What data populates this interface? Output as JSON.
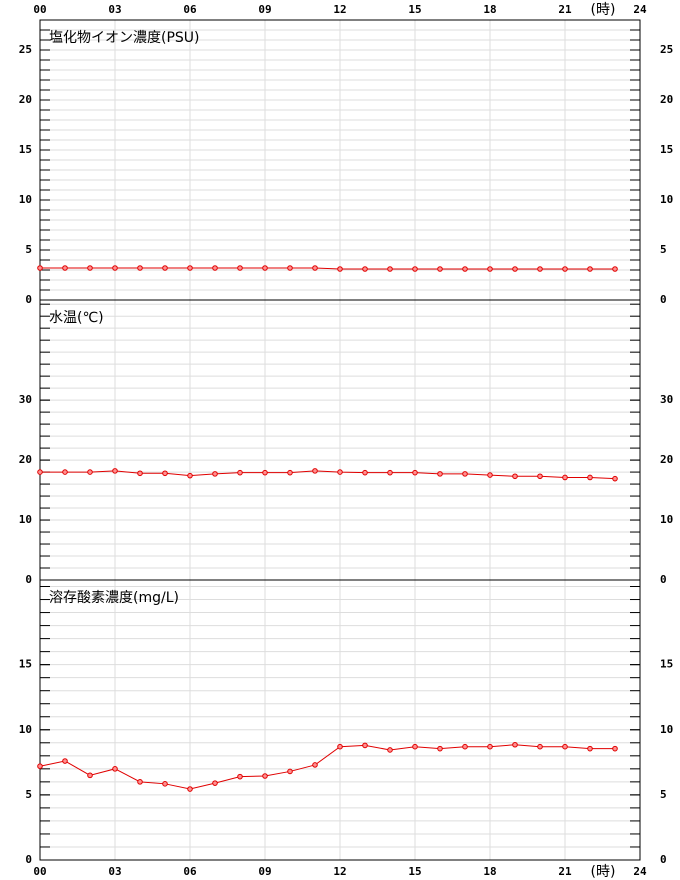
{
  "chart_data": [
    {
      "type": "line",
      "title": "塩化物イオン濃度(PSU)",
      "x_label": "(時)",
      "xtick_side": "top",
      "x": [
        0,
        1,
        2,
        3,
        4,
        5,
        6,
        7,
        8,
        9,
        10,
        11,
        12,
        13,
        14,
        15,
        16,
        17,
        18,
        19,
        20,
        21,
        22,
        23
      ],
      "series": [
        {
          "color": "#e00000",
          "values": [
            3.2,
            3.2,
            3.2,
            3.2,
            3.2,
            3.2,
            3.2,
            3.2,
            3.2,
            3.2,
            3.2,
            3.2,
            3.1,
            3.1,
            3.1,
            3.1,
            3.1,
            3.1,
            3.1,
            3.1,
            3.1,
            3.1,
            3.1,
            3.1
          ]
        }
      ],
      "xlim": [
        0,
        24
      ],
      "xticks": [
        {
          "value": 0,
          "label": "00"
        },
        {
          "value": 3,
          "label": "03"
        },
        {
          "value": 6,
          "label": "06"
        },
        {
          "value": 9,
          "label": "09"
        },
        12,
        15,
        18,
        21,
        24
      ],
      "ylim": [
        0,
        28
      ],
      "yticks": [
        0,
        5,
        10,
        15,
        20,
        25
      ],
      "minor_ystep": 1,
      "grid": true
    },
    {
      "type": "line",
      "title": "水温(℃)",
      "x": [
        0,
        1,
        2,
        3,
        4,
        5,
        6,
        7,
        8,
        9,
        10,
        11,
        12,
        13,
        14,
        15,
        16,
        17,
        18,
        19,
        20,
        21,
        22,
        23
      ],
      "series": [
        {
          "color": "#e00000",
          "values": [
            18.0,
            18.0,
            18.0,
            18.2,
            17.8,
            17.8,
            17.4,
            17.7,
            17.9,
            17.9,
            17.9,
            18.2,
            18.0,
            17.9,
            17.9,
            17.9,
            17.7,
            17.7,
            17.5,
            17.3,
            17.3,
            17.1,
            17.1,
            16.9
          ]
        }
      ],
      "xlim": [
        0,
        24
      ],
      "xticks": [
        0,
        3,
        6,
        9,
        12,
        15,
        18,
        21,
        24
      ],
      "ylim": [
        0,
        46.7
      ],
      "yticks": [
        0,
        10,
        20,
        30
      ],
      "minor_ystep": 2,
      "grid": true
    },
    {
      "type": "line",
      "title": "溶存酸素濃度(mg/L)",
      "x_label": "(時)",
      "xtick_side": "bottom",
      "x": [
        0,
        1,
        2,
        3,
        4,
        5,
        6,
        7,
        8,
        9,
        10,
        11,
        12,
        13,
        14,
        15,
        16,
        17,
        18,
        19,
        20,
        21,
        22,
        23
      ],
      "series": [
        {
          "color": "#e00000",
          "values": [
            7.2,
            7.6,
            6.5,
            7.0,
            6.0,
            5.85,
            5.45,
            5.9,
            6.4,
            6.45,
            6.8,
            7.3,
            8.7,
            8.8,
            8.45,
            8.7,
            8.55,
            8.7,
            8.7,
            8.85,
            8.7,
            8.7,
            8.55,
            8.55
          ]
        }
      ],
      "xlim": [
        0,
        24
      ],
      "xticks": [
        {
          "value": 0,
          "label": "00"
        },
        {
          "value": 3,
          "label": "03"
        },
        {
          "value": 6,
          "label": "06"
        },
        {
          "value": 9,
          "label": "09"
        },
        12,
        15,
        18,
        21,
        24
      ],
      "ylim": [
        0,
        21.5
      ],
      "yticks": [
        0,
        5,
        10,
        15
      ],
      "minor_ystep": 1,
      "grid": true
    }
  ]
}
